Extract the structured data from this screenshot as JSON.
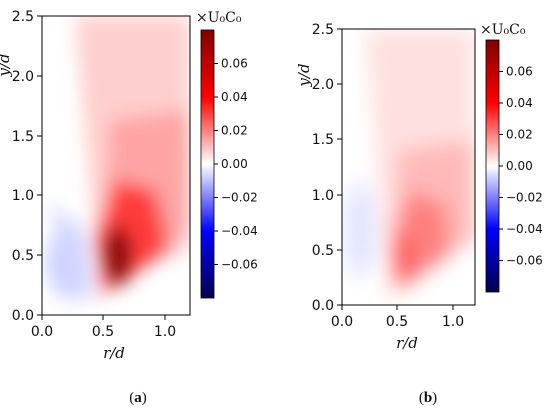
{
  "chart_data": [
    {
      "type": "heatmap",
      "caption_prefix": "(",
      "caption_letter": "a",
      "caption_suffix": ")",
      "xlabel": "r/d",
      "ylabel": "y/d",
      "xlim": [
        0.0,
        1.2
      ],
      "ylim": [
        0.0,
        2.5
      ],
      "x_ticks": [
        "0.0",
        "0.5",
        "1.0"
      ],
      "x_tick_values": [
        0.0,
        0.5,
        1.0
      ],
      "y_ticks": [
        "0.0",
        "0.5",
        "1.0",
        "1.5",
        "2.0",
        "2.5"
      ],
      "y_tick_values": [
        0.0,
        0.5,
        1.0,
        1.5,
        2.0,
        2.5
      ],
      "colorbar": {
        "label": "×U₀C₀",
        "min": -0.08,
        "max": 0.08,
        "ticks": [
          "0.06",
          "0.04",
          "0.02",
          "0.00",
          "−0.02",
          "−0.04",
          "−0.06"
        ],
        "tick_values": [
          0.06,
          0.04,
          0.02,
          0.0,
          -0.02,
          -0.04,
          -0.06
        ],
        "colormap": "seismic"
      },
      "field": {
        "positive_peak": {
          "r": 0.58,
          "y": 0.45,
          "value": 0.075
        },
        "negative_peak": {
          "r": 0.18,
          "y": 0.45,
          "value": -0.022
        }
      }
    },
    {
      "type": "heatmap",
      "caption_prefix": "(",
      "caption_letter": "b",
      "caption_suffix": ")",
      "xlabel": "r/d",
      "ylabel": "y/d",
      "xlim": [
        0.0,
        1.2
      ],
      "ylim": [
        0.0,
        2.5
      ],
      "x_ticks": [
        "0.0",
        "0.5",
        "1.0"
      ],
      "x_tick_values": [
        0.0,
        0.5,
        1.0
      ],
      "y_ticks": [
        "0.0",
        "0.5",
        "1.0",
        "1.5",
        "2.0",
        "2.5"
      ],
      "y_tick_values": [
        0.0,
        0.5,
        1.0,
        1.5,
        2.0,
        2.5
      ],
      "colorbar": {
        "label": "×U₀C₀",
        "min": -0.08,
        "max": 0.08,
        "ticks": [
          "0.06",
          "0.04",
          "0.02",
          "0.00",
          "−0.02",
          "−0.04",
          "−0.06"
        ],
        "tick_values": [
          0.06,
          0.04,
          0.02,
          0.0,
          -0.02,
          -0.04,
          -0.06
        ],
        "colormap": "seismic"
      },
      "field": {
        "positive_peak": {
          "r": 0.55,
          "y": 0.35,
          "value": 0.038
        },
        "negative_peak": {
          "r": 0.15,
          "y": 0.6,
          "value": -0.008
        }
      }
    }
  ]
}
